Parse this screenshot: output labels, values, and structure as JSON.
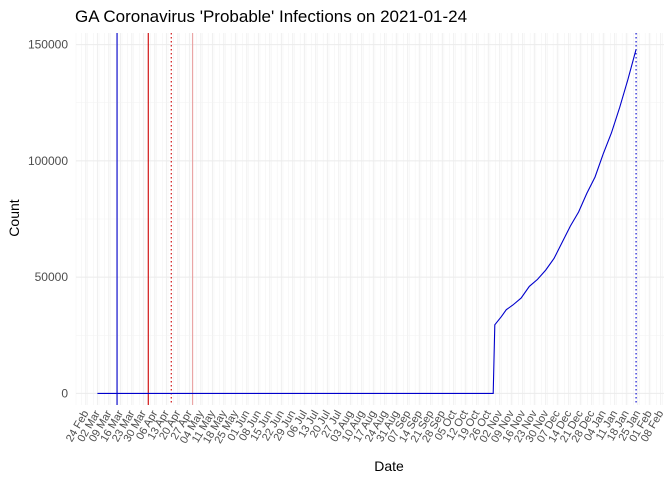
{
  "chart_data": {
    "type": "line",
    "title": "GA Coronavirus 'Probable' Infections on 2021-01-24",
    "xlabel": "Date",
    "ylabel": "Count",
    "x_axis": {
      "type": "date",
      "range": [
        "2020-02-18",
        "2021-02-10"
      ],
      "tick_labels": [
        "24 Feb",
        "02 Mar",
        "09 Mar",
        "16 Mar",
        "23 Mar",
        "30 Mar",
        "06 Apr",
        "13 Apr",
        "20 Apr",
        "27 Apr",
        "04 May",
        "11 May",
        "18 May",
        "25 May",
        "01 Jun",
        "08 Jun",
        "15 Jun",
        "22 Jun",
        "29 Jun",
        "06 Jul",
        "13 Jul",
        "20 Jul",
        "27 Jul",
        "03 Aug",
        "10 Aug",
        "17 Aug",
        "24 Aug",
        "31 Aug",
        "07 Sep",
        "14 Sep",
        "21 Sep",
        "28 Sep",
        "05 Oct",
        "12 Oct",
        "19 Oct",
        "26 Oct",
        "02 Nov",
        "09 Nov",
        "16 Nov",
        "23 Nov",
        "30 Nov",
        "07 Dec",
        "14 Dec",
        "21 Dec",
        "28 Dec",
        "04 Jan",
        "11 Jan",
        "18 Jan",
        "25 Jan",
        "01 Feb",
        "08 Feb"
      ],
      "tick_dates": [
        "2020-02-24",
        "2020-03-02",
        "2020-03-09",
        "2020-03-16",
        "2020-03-23",
        "2020-03-30",
        "2020-04-06",
        "2020-04-13",
        "2020-04-20",
        "2020-04-27",
        "2020-05-04",
        "2020-05-11",
        "2020-05-18",
        "2020-05-25",
        "2020-06-01",
        "2020-06-08",
        "2020-06-15",
        "2020-06-22",
        "2020-06-29",
        "2020-07-06",
        "2020-07-13",
        "2020-07-20",
        "2020-07-27",
        "2020-08-03",
        "2020-08-10",
        "2020-08-17",
        "2020-08-24",
        "2020-08-31",
        "2020-09-07",
        "2020-09-14",
        "2020-09-21",
        "2020-09-28",
        "2020-10-05",
        "2020-10-12",
        "2020-10-19",
        "2020-10-26",
        "2020-11-02",
        "2020-11-09",
        "2020-11-16",
        "2020-11-23",
        "2020-11-30",
        "2020-12-07",
        "2020-12-14",
        "2020-12-21",
        "2020-12-28",
        "2021-01-04",
        "2021-01-11",
        "2021-01-18",
        "2021-01-25",
        "2021-02-01",
        "2021-02-08"
      ]
    },
    "y_axis": {
      "range": [
        -5000,
        155000
      ],
      "ticks": [
        0,
        50000,
        100000,
        150000
      ],
      "tick_labels": [
        "0",
        "50000",
        "100000",
        "150000"
      ]
    },
    "grid": true,
    "series": [
      {
        "color": "#0000cc",
        "x": [
          "2020-03-02",
          "2020-10-29",
          "2020-10-30",
          "2020-11-03",
          "2020-11-06",
          "2020-11-10",
          "2020-11-15",
          "2020-11-20",
          "2020-11-25",
          "2020-11-30",
          "2020-12-05",
          "2020-12-10",
          "2020-12-15",
          "2020-12-20",
          "2020-12-25",
          "2020-12-30",
          "2021-01-04",
          "2021-01-09",
          "2021-01-14",
          "2021-01-19",
          "2021-01-24"
        ],
        "y": [
          0,
          0,
          29500,
          33000,
          36000,
          38000,
          41000,
          46000,
          49000,
          53000,
          58000,
          65000,
          72000,
          78000,
          86000,
          93000,
          103000,
          112000,
          123000,
          135000,
          148000
        ]
      }
    ],
    "reference_lines": [
      {
        "date": "2020-03-14",
        "color": "#0000cc",
        "style": "solid"
      },
      {
        "date": "2020-04-02",
        "color": "#cc0000",
        "style": "solid"
      },
      {
        "date": "2020-04-16",
        "color": "#cc0000",
        "style": "dotted"
      },
      {
        "date": "2020-04-29",
        "color": "#e8a0a0",
        "style": "solid"
      },
      {
        "date": "2021-01-24",
        "color": "#0000cc",
        "style": "dotted"
      }
    ]
  }
}
